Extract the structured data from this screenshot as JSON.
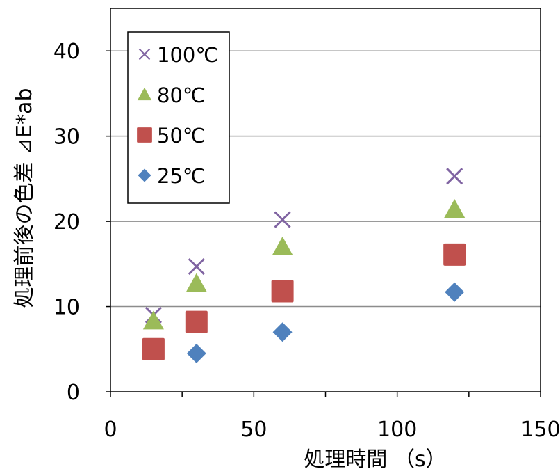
{
  "chart_data": {
    "type": "scatter",
    "title": "",
    "xlabel": "処理時間 （s）",
    "ylabel": "処理前後の色差 ⊿E*ab",
    "xlim": [
      0,
      150
    ],
    "ylim": [
      0,
      45
    ],
    "xticks": [
      0,
      50,
      100,
      150
    ],
    "yticks": [
      0,
      10,
      20,
      30,
      40
    ],
    "grid": "horizontal",
    "legend_position": "top-left",
    "series": [
      {
        "name": "100℃",
        "marker": "x",
        "color": "#8064a2",
        "points": [
          [
            15,
            9
          ],
          [
            30,
            14.7
          ],
          [
            60,
            20.2
          ],
          [
            120,
            25.3
          ]
        ]
      },
      {
        "name": "80℃",
        "marker": "triangle",
        "color": "#9bbb59",
        "points": [
          [
            15,
            8.3
          ],
          [
            30,
            12.7
          ],
          [
            60,
            17
          ],
          [
            120,
            21.4
          ]
        ]
      },
      {
        "name": "50℃",
        "marker": "square",
        "color": "#c0504d",
        "points": [
          [
            15,
            5
          ],
          [
            30,
            8.2
          ],
          [
            60,
            11.8
          ],
          [
            120,
            16.1
          ]
        ]
      },
      {
        "name": "25℃",
        "marker": "diamond",
        "color": "#4f81bd",
        "points": [
          [
            30,
            4.5
          ],
          [
            60,
            7
          ],
          [
            120,
            11.7
          ]
        ]
      }
    ]
  }
}
